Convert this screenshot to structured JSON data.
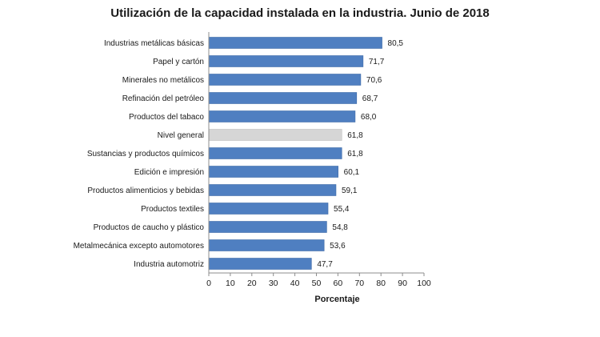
{
  "chart_data": {
    "type": "bar",
    "orientation": "horizontal",
    "title": "Utilización de la capacidad instalada en la industria. Junio de 2018",
    "xlabel": "Porcentaje",
    "ylabel": "",
    "xlim": [
      0,
      100
    ],
    "ticks": [
      "0",
      "10",
      "20",
      "30",
      "40",
      "50",
      "60",
      "70",
      "80",
      "90",
      "100"
    ],
    "grid": false,
    "categories": [
      "Industrias metálicas básicas",
      "Papel y cartón",
      "Minerales no metálicos",
      "Refinación del petróleo",
      "Productos del tabaco",
      "Nivel general",
      "Sustancias y productos químicos",
      "Edición e impresión",
      "Productos alimenticios y bebidas",
      "Productos textiles",
      "Productos de caucho y plástico",
      "Metalmecánica excepto automotores",
      "Industria automotriz"
    ],
    "values": [
      80.5,
      71.7,
      70.6,
      68.7,
      68.0,
      61.8,
      61.8,
      60.1,
      59.1,
      55.4,
      54.8,
      53.6,
      47.7
    ],
    "value_labels": [
      "80,5",
      "71,7",
      "70,6",
      "68,7",
      "68,0",
      "61,8",
      "61,8",
      "60,1",
      "59,1",
      "55,4",
      "54,8",
      "53,6",
      "47,7"
    ],
    "colors": {
      "bar": "#4f7fc1",
      "bar_stroke": "#3e6aa8",
      "highlight": "#d6d6d6",
      "highlight_stroke": "#bdbdbd",
      "axis": "#8c8c8c"
    },
    "highlight_category": "Nivel general"
  }
}
